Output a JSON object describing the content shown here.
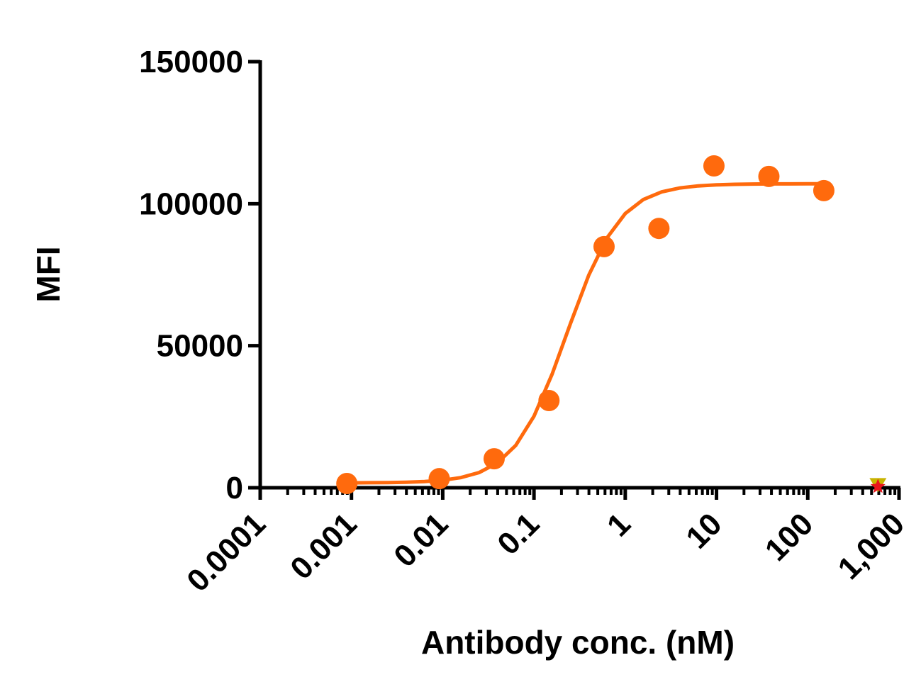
{
  "chart_data": {
    "type": "scatter",
    "xlabel": "Antibody conc. (nM)",
    "ylabel": "MFI",
    "xscale": "log",
    "xlim": [
      0.0001,
      1000
    ],
    "xticks": [
      0.0001,
      0.001,
      0.01,
      0.1,
      1,
      10,
      100,
      {
        "value": 1000,
        "label": "1,000"
      }
    ],
    "xminorticks": [
      0.0002,
      0.0003,
      0.0004,
      0.0005,
      0.0006,
      0.0007,
      0.0008,
      0.0009,
      0.002,
      0.003,
      0.004,
      0.005,
      0.006,
      0.007,
      0.008,
      0.009,
      0.02,
      0.03,
      0.04,
      0.05,
      0.06,
      0.07,
      0.08,
      0.09,
      0.2,
      0.3,
      0.4,
      0.5,
      0.6,
      0.7,
      0.8,
      0.9,
      2,
      3,
      4,
      5,
      6,
      7,
      8,
      9,
      20,
      30,
      40,
      50,
      60,
      70,
      80,
      90,
      200,
      300,
      400,
      500,
      600,
      700,
      800,
      900
    ],
    "ylim": [
      0,
      150000
    ],
    "yticks": [
      0,
      50000,
      100000,
      150000
    ],
    "series": [
      {
        "color": "#ff6a0d",
        "marker": "circle",
        "x": [
          0.00089,
          0.00916,
          0.0366,
          0.146,
          0.586,
          2.34,
          9.375,
          37.5,
          150
        ],
        "values": [
          1500,
          3200,
          10200,
          30700,
          84900,
          91300,
          113300,
          109600,
          104600
        ]
      },
      {
        "color": "#c8b400",
        "marker": "triangle-down",
        "x": [
          588
        ],
        "values": [
          900
        ]
      },
      {
        "color": "#e8141c",
        "marker": "star",
        "x": [
          588
        ],
        "values": [
          400
        ]
      }
    ],
    "fit": {
      "color": "#ff6a0d",
      "x": [
        0.001,
        0.00158,
        0.00251,
        0.00398,
        0.00631,
        0.01,
        0.0158,
        0.0251,
        0.0398,
        0.0631,
        0.1,
        0.158,
        0.251,
        0.398,
        0.631,
        1,
        1.58,
        2.51,
        3.98,
        6.31,
        10,
        15.8,
        25.1,
        39.8,
        63.1,
        100,
        158
      ],
      "values": [
        1730,
        1760,
        1820,
        1940,
        2180,
        2650,
        3570,
        5370,
        8770,
        14900,
        25150,
        39990,
        57800,
        74860,
        87990,
        96530,
        101480,
        104160,
        105560,
        106270,
        106630,
        106820,
        106910,
        106960,
        106980,
        106990,
        107000
      ]
    }
  }
}
